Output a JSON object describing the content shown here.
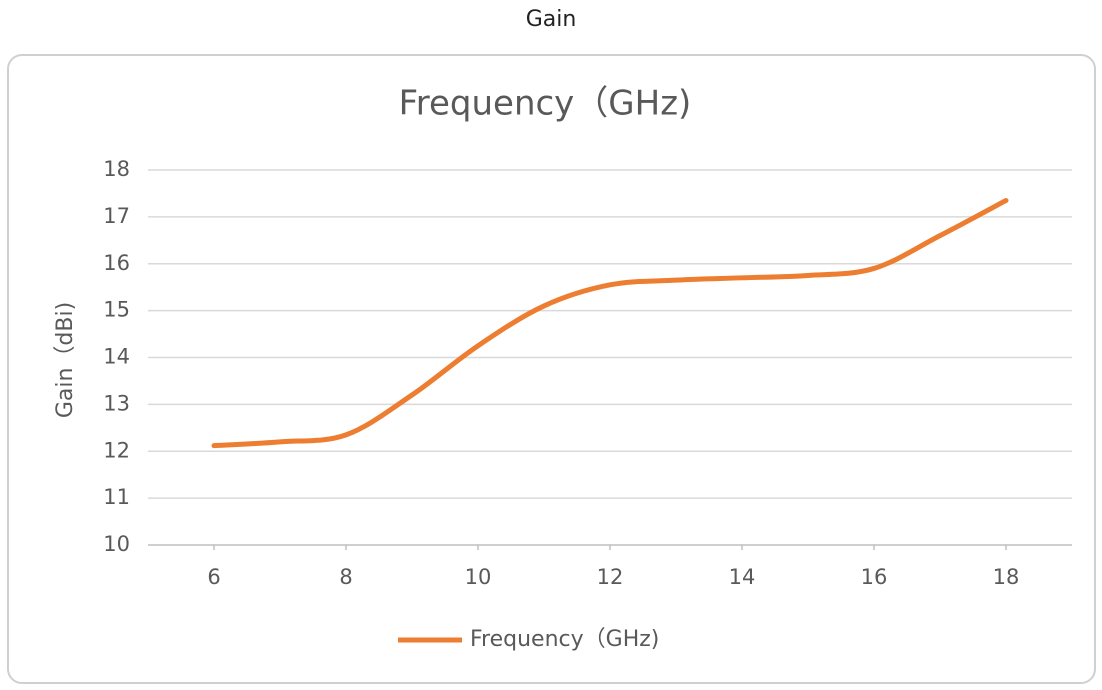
{
  "page_title": "Gain",
  "chart_data": {
    "type": "line",
    "title": "Frequency（GHz)",
    "y_label": "Gain（dBi)",
    "x": [
      6,
      7,
      8,
      9,
      10,
      11,
      12,
      13,
      14,
      15,
      16,
      17,
      18
    ],
    "series": [
      {
        "name": "Frequency（GHz)",
        "color": "#ed7d31",
        "values": [
          12.12,
          12.2,
          12.35,
          13.2,
          14.25,
          15.1,
          15.55,
          15.65,
          15.7,
          15.75,
          15.9,
          16.6,
          17.35
        ]
      }
    ],
    "xlim": [
      5,
      19
    ],
    "xticks": [
      6,
      8,
      10,
      12,
      14,
      16,
      18
    ],
    "ylim": [
      10,
      18
    ],
    "yticks": [
      10,
      11,
      12,
      13,
      14,
      15,
      16,
      17,
      18
    ],
    "grid": true,
    "smooth": true,
    "legend": "bottom"
  }
}
